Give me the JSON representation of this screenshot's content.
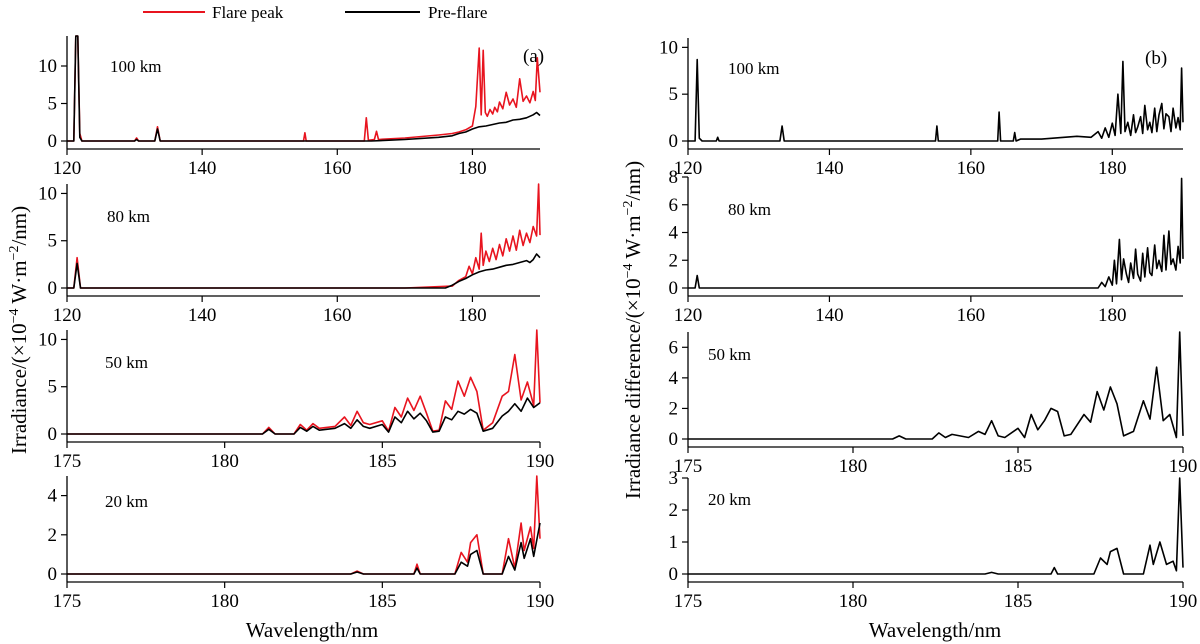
{
  "legend": {
    "items": [
      {
        "label": "Flare peak",
        "color": "#e8141f"
      },
      {
        "label": "Pre-flare",
        "color": "#000000"
      }
    ]
  },
  "colors": {
    "flare": "#e8141f",
    "preflare": "#000000",
    "axis": "#000000"
  },
  "left": {
    "panel_letter": "(a)",
    "ylabel_main": "Irradiance/(×10",
    "ylabel_exp1": "−4",
    "ylabel_mid": " W·m",
    "ylabel_exp2": "−2",
    "ylabel_end": "/nm)",
    "xlabel": "Wavelength/nm"
  },
  "right": {
    "panel_letter": "(b)",
    "ylabel_main": "Irradiance difference/(×10",
    "ylabel_exp1": "−4",
    "ylabel_mid": " W·m",
    "ylabel_exp2": "−2",
    "ylabel_end": "/nm)",
    "xlabel": "Wavelength/nm"
  },
  "chart_data": [
    {
      "id": "a-100",
      "type": "line",
      "panel_label": "100 km",
      "xlim": [
        120,
        190
      ],
      "ylim": [
        0,
        14
      ],
      "xticks": [
        120,
        140,
        160,
        180
      ],
      "yticks": [
        0,
        5,
        10
      ],
      "series": [
        {
          "name": "Flare peak",
          "color": "#e8141f",
          "x": [
            120,
            121,
            121.3,
            121.6,
            121.9,
            122.2,
            122.6,
            130,
            130.3,
            130.6,
            133,
            133.4,
            133.8,
            155,
            155.2,
            155.4,
            164,
            164.3,
            164.6,
            165.5,
            165.8,
            166.1,
            170,
            175,
            177,
            178,
            179,
            180,
            180.5,
            181,
            181.3,
            181.6,
            181.9,
            182.2,
            182.6,
            183,
            183.3,
            183.7,
            184,
            184.5,
            185,
            185.5,
            186,
            186.5,
            187,
            187.5,
            188,
            188.5,
            189,
            189.3,
            189.6,
            190
          ],
          "y": [
            0,
            0,
            14,
            14,
            1,
            0,
            0,
            0,
            0.4,
            0,
            0,
            1.9,
            0,
            0,
            1.1,
            0,
            0,
            3.1,
            0.1,
            0.2,
            1.3,
            0.2,
            0.4,
            0.8,
            1.0,
            1.2,
            1.5,
            2.0,
            4.6,
            12.4,
            3.5,
            12.1,
            3.8,
            3.3,
            4.2,
            3.6,
            4.5,
            3.9,
            5.2,
            4.3,
            6.5,
            4.8,
            5.6,
            4.5,
            8.3,
            5.3,
            6.0,
            5.1,
            6.6,
            5.4,
            11.1,
            6.5
          ]
        },
        {
          "name": "Pre-flare",
          "color": "#000000",
          "x": [
            120,
            121,
            121.3,
            121.6,
            121.9,
            122.2,
            130,
            130.3,
            130.6,
            133,
            133.4,
            133.8,
            165,
            170,
            175,
            177,
            178,
            179,
            180,
            181,
            182,
            183,
            184,
            185,
            186,
            187,
            188,
            189,
            189.5,
            190
          ],
          "y": [
            0,
            0,
            14,
            14,
            0.5,
            0,
            0,
            0.2,
            0,
            0,
            1.6,
            0,
            0,
            0.2,
            0.5,
            0.7,
            1.0,
            1.2,
            1.6,
            1.9,
            2.0,
            2.2,
            2.4,
            2.5,
            2.8,
            2.9,
            3.1,
            3.5,
            3.8,
            3.4
          ]
        }
      ]
    },
    {
      "id": "a-80",
      "type": "line",
      "panel_label": "80 km",
      "xlim": [
        120,
        190
      ],
      "ylim": [
        0,
        11
      ],
      "xticks": [
        120,
        140,
        160,
        180
      ],
      "yticks": [
        0,
        5,
        10
      ],
      "series": [
        {
          "name": "Flare peak",
          "color": "#e8141f",
          "x": [
            120,
            121,
            121.5,
            122,
            122.5,
            170,
            177,
            178,
            179,
            179.5,
            180,
            180.5,
            181,
            181.3,
            181.6,
            182,
            182.5,
            183,
            183.5,
            184,
            184.5,
            185,
            185.5,
            186,
            186.5,
            187,
            187.5,
            188,
            188.5,
            189,
            189.5,
            189.8,
            190
          ],
          "y": [
            0,
            0,
            3.2,
            0,
            0,
            0,
            0.2,
            0.8,
            1.2,
            2.3,
            1.5,
            3.2,
            2.0,
            5.8,
            2.4,
            3.9,
            2.8,
            4.2,
            3.0,
            4.6,
            3.4,
            5.2,
            3.9,
            5.5,
            4.0,
            6.1,
            4.5,
            5.8,
            4.8,
            6.5,
            5.5,
            11.0,
            5.6
          ]
        },
        {
          "name": "Pre-flare",
          "color": "#000000",
          "x": [
            120,
            121,
            121.5,
            122,
            122.5,
            176,
            177,
            178,
            179,
            180,
            181,
            182,
            183,
            184,
            185,
            186,
            187,
            188,
            188.5,
            189,
            189.5,
            190
          ],
          "y": [
            0,
            0,
            2.6,
            0,
            0,
            0,
            0.3,
            0.7,
            1.0,
            1.4,
            1.7,
            1.9,
            2.0,
            2.2,
            2.4,
            2.5,
            2.7,
            2.9,
            2.7,
            3.0,
            3.6,
            3.2
          ]
        }
      ]
    },
    {
      "id": "a-50",
      "type": "line",
      "panel_label": "50 km",
      "xlim": [
        175,
        190
      ],
      "ylim": [
        0,
        11
      ],
      "xticks": [
        175,
        180,
        185,
        190
      ],
      "yticks": [
        0,
        5,
        10
      ],
      "series": [
        {
          "name": "Flare peak",
          "color": "#e8141f",
          "x": [
            175,
            180,
            181.2,
            181.4,
            181.6,
            182.2,
            182.4,
            182.6,
            182.8,
            183,
            183.5,
            183.8,
            184,
            184.2,
            184.4,
            184.6,
            185,
            185.2,
            185.4,
            185.6,
            185.8,
            186,
            186.2,
            186.4,
            186.6,
            186.8,
            187,
            187.2,
            187.4,
            187.6,
            187.8,
            188,
            188.2,
            188.5,
            188.8,
            189,
            189.2,
            189.4,
            189.6,
            189.8,
            189.9,
            190
          ],
          "y": [
            0,
            0,
            0,
            0.7,
            0,
            0,
            1.0,
            0.4,
            1.1,
            0.6,
            0.8,
            1.8,
            0.9,
            2.4,
            1.2,
            1.0,
            1.4,
            0.3,
            2.8,
            1.8,
            3.8,
            2.5,
            4.0,
            2.2,
            0.3,
            0.4,
            3.5,
            2.6,
            5.6,
            4.0,
            6.0,
            4.5,
            0.4,
            1.2,
            4.0,
            4.5,
            8.4,
            3.6,
            5.5,
            3.0,
            11.0,
            3.3
          ]
        },
        {
          "name": "Pre-flare",
          "color": "#000000",
          "x": [
            175,
            180,
            181.2,
            181.4,
            181.6,
            182.2,
            182.4,
            182.6,
            182.8,
            183,
            183.5,
            183.8,
            184,
            184.2,
            184.4,
            184.6,
            185,
            185.2,
            185.4,
            185.6,
            185.8,
            186,
            186.2,
            186.4,
            186.6,
            186.8,
            187,
            187.2,
            187.4,
            187.6,
            187.8,
            188,
            188.2,
            188.5,
            188.8,
            189,
            189.2,
            189.4,
            189.6,
            189.8,
            190
          ],
          "y": [
            0,
            0,
            0,
            0.5,
            0,
            0,
            0.7,
            0.3,
            0.8,
            0.4,
            0.6,
            1.1,
            0.6,
            1.5,
            0.8,
            0.6,
            1.0,
            0.2,
            1.8,
            1.2,
            2.4,
            1.6,
            2.2,
            1.4,
            0.2,
            0.3,
            1.8,
            1.5,
            2.4,
            2.1,
            2.6,
            2.2,
            0.3,
            0.6,
            1.9,
            2.4,
            3.2,
            2.4,
            3.8,
            2.8,
            3.3
          ]
        }
      ]
    },
    {
      "id": "a-20",
      "type": "line",
      "panel_label": "20 km",
      "xlim": [
        175,
        190
      ],
      "ylim": [
        0,
        5
      ],
      "xticks": [
        175,
        180,
        185,
        190
      ],
      "yticks": [
        0,
        2,
        4
      ],
      "series": [
        {
          "name": "Flare peak",
          "color": "#e8141f",
          "x": [
            175,
            184,
            184.2,
            184.4,
            186,
            186.1,
            186.2,
            187.3,
            187.5,
            187.7,
            187.8,
            188,
            188.2,
            188.8,
            189,
            189.2,
            189.4,
            189.5,
            189.7,
            189.8,
            189.9,
            190
          ],
          "y": [
            0,
            0,
            0.15,
            0,
            0,
            0.5,
            0,
            0,
            1.1,
            0.6,
            1.6,
            2.0,
            0,
            0,
            1.8,
            0.3,
            2.6,
            1.2,
            2.4,
            1.3,
            5.0,
            1.8
          ]
        },
        {
          "name": "Pre-flare",
          "color": "#000000",
          "x": [
            175,
            184,
            184.2,
            184.4,
            186,
            186.1,
            186.2,
            187.3,
            187.5,
            187.7,
            187.8,
            188,
            188.2,
            188.8,
            189,
            189.2,
            189.4,
            189.5,
            189.7,
            189.8,
            190
          ],
          "y": [
            0,
            0,
            0.1,
            0,
            0,
            0.3,
            0,
            0,
            0.6,
            0.4,
            1.0,
            1.2,
            0,
            0,
            0.9,
            0.2,
            1.6,
            0.8,
            1.8,
            0.9,
            2.6
          ]
        }
      ]
    },
    {
      "id": "b-100",
      "type": "line",
      "panel_label": "100 km",
      "xlim": [
        120,
        190
      ],
      "ylim": [
        0,
        11
      ],
      "xticks": [
        120,
        140,
        160,
        180
      ],
      "yticks": [
        0,
        5,
        10
      ],
      "series": [
        {
          "name": "",
          "color": "#000000",
          "x": [
            120,
            121,
            121.3,
            121.6,
            122,
            124,
            124.2,
            124.4,
            133,
            133.3,
            133.6,
            155,
            155.2,
            155.4,
            163.8,
            164,
            164.2,
            166,
            166.2,
            166.4,
            167,
            170,
            175,
            177,
            178,
            178.5,
            179,
            179.5,
            180,
            180.4,
            180.8,
            181.2,
            181.5,
            181.8,
            182.2,
            182.6,
            183,
            183.3,
            183.6,
            184,
            184.3,
            184.6,
            185,
            185.3,
            185.6,
            186,
            186.3,
            186.6,
            187,
            187.3,
            187.6,
            188,
            188.3,
            188.6,
            189,
            189.3,
            189.6,
            189.8,
            190
          ],
          "y": [
            0,
            0,
            8.7,
            0.3,
            0,
            0,
            0.4,
            0,
            0,
            1.6,
            0,
            0,
            1.6,
            0,
            0,
            3.1,
            0,
            0,
            0.9,
            0,
            0.2,
            0.2,
            0.5,
            0.4,
            1.0,
            0.3,
            1.4,
            0.4,
            1.9,
            0.6,
            5.0,
            0.8,
            8.5,
            1.0,
            2.0,
            0.6,
            2.8,
            0.9,
            1.5,
            2.6,
            0.8,
            3.8,
            1.2,
            2.0,
            0.9,
            3.5,
            1.0,
            2.8,
            4.0,
            1.3,
            2.9,
            2.6,
            1.0,
            3.5,
            1.4,
            2.5,
            1.2,
            7.8,
            2.0
          ]
        }
      ]
    },
    {
      "id": "b-80",
      "type": "line",
      "panel_label": "80 km",
      "xlim": [
        120,
        190
      ],
      "ylim": [
        0,
        8
      ],
      "xticks": [
        120,
        140,
        160,
        180
      ],
      "yticks": [
        0,
        2,
        4,
        6,
        8
      ],
      "series": [
        {
          "name": "",
          "color": "#000000",
          "x": [
            120,
            121,
            121.3,
            121.6,
            122,
            178,
            178.5,
            179,
            179.5,
            180,
            180.3,
            180.6,
            181,
            181.3,
            181.6,
            182,
            182.3,
            182.6,
            183,
            183.3,
            183.6,
            184,
            184.3,
            184.6,
            185,
            185.3,
            185.6,
            186,
            186.3,
            186.6,
            187,
            187.3,
            187.6,
            188,
            188.3,
            188.6,
            189,
            189.3,
            189.6,
            189.8,
            190
          ],
          "y": [
            0,
            0,
            0.9,
            0,
            0,
            0,
            0.4,
            0.1,
            0.8,
            0.2,
            2.0,
            0.3,
            3.5,
            0.6,
            2.1,
            1.0,
            0.4,
            1.8,
            0.7,
            2.8,
            1.0,
            0.5,
            2.5,
            0.8,
            2.9,
            1.1,
            0.9,
            3.1,
            1.4,
            2.0,
            1.2,
            3.8,
            1.3,
            4.1,
            1.7,
            2.1,
            1.3,
            3.0,
            1.8,
            7.9,
            2.1
          ]
        }
      ]
    },
    {
      "id": "b-50",
      "type": "line",
      "panel_label": "50 km",
      "xlim": [
        175,
        190
      ],
      "ylim": [
        0,
        7
      ],
      "xticks": [
        175,
        180,
        185,
        190
      ],
      "yticks": [
        0,
        2,
        4,
        6
      ],
      "series": [
        {
          "name": "",
          "color": "#000000",
          "x": [
            175,
            180,
            181.2,
            181.4,
            181.6,
            182.4,
            182.6,
            182.8,
            183,
            183.5,
            183.8,
            184,
            184.2,
            184.4,
            184.6,
            185,
            185.2,
            185.4,
            185.6,
            185.8,
            186,
            186.2,
            186.4,
            186.6,
            187,
            187.2,
            187.4,
            187.6,
            187.8,
            188,
            188.2,
            188.5,
            188.8,
            189,
            189.2,
            189.4,
            189.6,
            189.8,
            189.9,
            190
          ],
          "y": [
            0,
            0,
            0,
            0.2,
            0,
            0,
            0.4,
            0.1,
            0.3,
            0.1,
            0.5,
            0.3,
            1.2,
            0.2,
            0.1,
            0.7,
            0.1,
            1.6,
            0.6,
            1.2,
            2.0,
            1.8,
            0.2,
            0.3,
            1.6,
            1.1,
            3.1,
            1.9,
            3.4,
            2.3,
            0.2,
            0.5,
            2.5,
            1.3,
            4.7,
            1.2,
            1.6,
            0.1,
            7.0,
            0.2
          ]
        }
      ]
    },
    {
      "id": "b-20",
      "type": "line",
      "panel_label": "20 km",
      "xlim": [
        175,
        190
      ],
      "ylim": [
        0,
        3
      ],
      "xticks": [
        175,
        180,
        185,
        190
      ],
      "yticks": [
        0,
        1,
        2,
        3
      ],
      "series": [
        {
          "name": "",
          "color": "#000000",
          "x": [
            175,
            184,
            184.2,
            184.4,
            186,
            186.1,
            186.2,
            187.3,
            187.5,
            187.7,
            187.8,
            188,
            188.2,
            188.8,
            189,
            189.1,
            189.3,
            189.5,
            189.7,
            189.8,
            189.9,
            190
          ],
          "y": [
            0,
            0,
            0.05,
            0,
            0,
            0.2,
            0,
            0,
            0.5,
            0.3,
            0.7,
            0.8,
            0,
            0,
            0.9,
            0.3,
            1.0,
            0.3,
            0.4,
            0.1,
            3.0,
            0.2
          ]
        }
      ]
    }
  ]
}
